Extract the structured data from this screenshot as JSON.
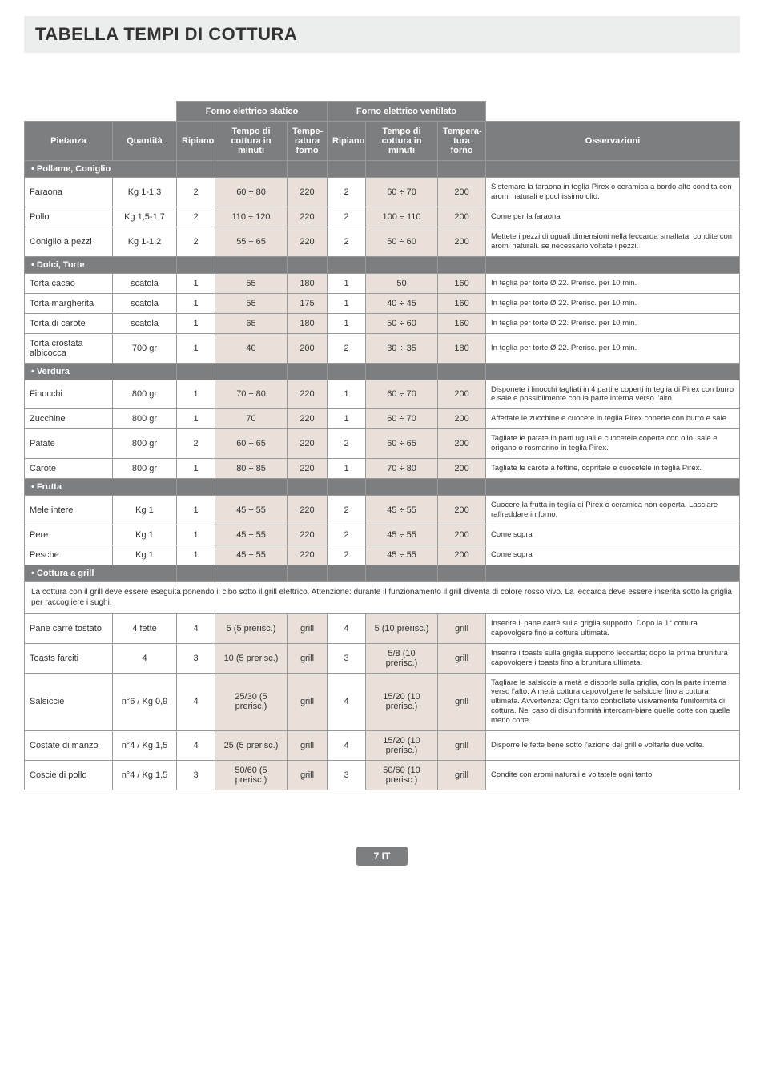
{
  "title": "TABELLA TEMPI DI COTTURA",
  "group_headers": {
    "statico": "Forno elettrico statico",
    "ventilato": "Forno elettrico ventilato"
  },
  "col_headers": {
    "pietanza": "Pietanza",
    "quantita": "Quantità",
    "ripiano1": "Ripiano",
    "tempo1": "Tempo di cottura in minuti",
    "temp1": "Tempe-ratura forno",
    "ripiano2": "Ripiano",
    "tempo2": "Tempo di cottura in minuti",
    "temp2": "Tempera-tura forno",
    "oss": "Osservazioni"
  },
  "sections": [
    {
      "name": "• Pollame, Coniglio",
      "rows": [
        {
          "piet": "Faraona",
          "qta": "Kg 1-1,3",
          "r1": "2",
          "t1": "60 ÷ 80",
          "tp1": "220",
          "r2": "2",
          "t2": "60 ÷ 70",
          "tp2": "200",
          "obs": "Sistemare la faraona in teglia Pirex o ceramica a bordo alto condita con aromi naturali e pochissimo olio."
        },
        {
          "piet": "Pollo",
          "qta": "Kg 1,5-1,7",
          "r1": "2",
          "t1": "110 ÷ 120",
          "tp1": "220",
          "r2": "2",
          "t2": "100 ÷ 110",
          "tp2": "200",
          "obs": "Come per la faraona"
        },
        {
          "piet": "Coniglio a pezzi",
          "qta": "Kg 1-1,2",
          "r1": "2",
          "t1": "55 ÷ 65",
          "tp1": "220",
          "r2": "2",
          "t2": "50 ÷ 60",
          "tp2": "200",
          "obs": "Mettete i pezzi di uguali dimensioni nella leccarda smaltata, condite con aromi naturali. se necessario voltate i pezzi."
        }
      ]
    },
    {
      "name": "• Dolci, Torte",
      "rows": [
        {
          "piet": "Torta cacao",
          "qta": "scatola",
          "r1": "1",
          "t1": "55",
          "tp1": "180",
          "r2": "1",
          "t2": "50",
          "tp2": "160",
          "obs": "In teglia per torte Ø 22. Prerisc. per 10 min."
        },
        {
          "piet": "Torta margherita",
          "qta": "scatola",
          "r1": "1",
          "t1": "55",
          "tp1": "175",
          "r2": "1",
          "t2": "40 ÷ 45",
          "tp2": "160",
          "obs": "In teglia per torte Ø 22. Prerisc. per 10 min."
        },
        {
          "piet": "Torta di carote",
          "qta": "scatola",
          "r1": "1",
          "t1": "65",
          "tp1": "180",
          "r2": "1",
          "t2": "50 ÷ 60",
          "tp2": "160",
          "obs": "In teglia per torte Ø 22. Prerisc. per 10 min."
        },
        {
          "piet": "Torta crostata albicocca",
          "qta": "700 gr",
          "r1": "1",
          "t1": "40",
          "tp1": "200",
          "r2": "2",
          "t2": "30 ÷ 35",
          "tp2": "180",
          "obs": "In teglia per torte Ø 22. Prerisc. per 10 min."
        }
      ]
    },
    {
      "name": "• Verdura",
      "rows": [
        {
          "piet": "Finocchi",
          "qta": "800 gr",
          "r1": "1",
          "t1": "70 ÷ 80",
          "tp1": "220",
          "r2": "1",
          "t2": "60 ÷ 70",
          "tp2": "200",
          "obs": "Disponete i finocchi tagliati in 4 parti e coperti in teglia di Pirex con burro e sale e possibilmente con la parte interna verso l'alto"
        },
        {
          "piet": "Zucchine",
          "qta": "800 gr",
          "r1": "1",
          "t1": "70",
          "tp1": "220",
          "r2": "1",
          "t2": "60 ÷ 70",
          "tp2": "200",
          "obs": "Affettate le zucchine e cuocete in teglia Pirex coperte con burro e sale"
        },
        {
          "piet": "Patate",
          "qta": "800 gr",
          "r1": "2",
          "t1": "60 ÷ 65",
          "tp1": "220",
          "r2": "2",
          "t2": "60 ÷ 65",
          "tp2": "200",
          "obs": "Tagliate le patate in parti uguali e cuocetele coperte con olio, sale e origano o rosmarino in teglia Pirex."
        },
        {
          "piet": "Carote",
          "qta": "800 gr",
          "r1": "1",
          "t1": "80 ÷ 85",
          "tp1": "220",
          "r2": "1",
          "t2": "70 ÷ 80",
          "tp2": "200",
          "obs": "Tagliate le carote a fettine, copritele e cuocetele in teglia Pirex."
        }
      ]
    },
    {
      "name": "• Frutta",
      "rows": [
        {
          "piet": "Mele intere",
          "qta": "Kg 1",
          "r1": "1",
          "t1": "45 ÷ 55",
          "tp1": "220",
          "r2": "2",
          "t2": "45 ÷ 55",
          "tp2": "200",
          "obs": "Cuocere la frutta in teglia di Pirex o ceramica non coperta. Lasciare raffreddare in forno."
        },
        {
          "piet": "Pere",
          "qta": "Kg 1",
          "r1": "1",
          "t1": "45 ÷ 55",
          "tp1": "220",
          "r2": "2",
          "t2": "45 ÷ 55",
          "tp2": "200",
          "obs": "Come sopra"
        },
        {
          "piet": "Pesche",
          "qta": "Kg 1",
          "r1": "1",
          "t1": "45 ÷ 55",
          "tp1": "220",
          "r2": "2",
          "t2": "45 ÷ 55",
          "tp2": "200",
          "obs": "Come sopra"
        }
      ]
    }
  ],
  "grill_section": "• Cottura a grill",
  "grill_note": "La cottura con il grill deve essere eseguita ponendo il cibo sotto il grill elettrico. Attenzione: durante il funzionamento il grill diventa di colore rosso vivo. La leccarda deve essere inserita sotto la griglia per raccogliere i sughi.",
  "grill_rows": [
    {
      "piet": "Pane carrè tostato",
      "qta": "4 fette",
      "r1": "4",
      "t1": "5 (5 prerisc.)",
      "tp1": "grill",
      "r2": "4",
      "t2": "5 (10 prerisc.)",
      "tp2": "grill",
      "obs": "Inserire il pane carrè sulla griglia supporto. Dopo la 1° cottura capovolgere fino a cottura ultimata."
    },
    {
      "piet": "Toasts farciti",
      "qta": "4",
      "r1": "3",
      "t1": "10 (5 prerisc.)",
      "tp1": "grill",
      "r2": "3",
      "t2": "5/8 (10 prerisc.)",
      "tp2": "grill",
      "obs": "Inserire i toasts sulla griglia supporto leccarda; dopo la prima brunitura capovolgere i toasts fino a brunitura ultimata."
    },
    {
      "piet": "Salsiccie",
      "qta": "n°6 / Kg 0,9",
      "r1": "4",
      "t1": "25/30 (5 prerisc.)",
      "tp1": "grill",
      "r2": "4",
      "t2": "15/20 (10 prerisc.)",
      "tp2": "grill",
      "obs": "Tagliare le salsiccie a metà e disporle sulla griglia, con la parte interna verso l'alto. A metà cottura capovolgere le salsiccie fino a cottura ultimata. Avvertenza: Ogni tanto controllate visivamente l'uniformità di cottura. Nel caso di disuniformità intercam-biare quelle cotte con quelle meno cotte."
    },
    {
      "piet": "Costate di manzo",
      "qta": "n°4 / Kg 1,5",
      "r1": "4",
      "t1": "25 (5 prerisc.)",
      "tp1": "grill",
      "r2": "4",
      "t2": "15/20 (10 prerisc.)",
      "tp2": "grill",
      "obs": "Disporre le fette bene sotto l'azione del grill e voltarle due volte."
    },
    {
      "piet": "Coscie di pollo",
      "qta": "n°4 / Kg 1,5",
      "r1": "3",
      "t1": "50/60 (5 prerisc.)",
      "tp1": "grill",
      "r2": "3",
      "t2": "50/60 (10 prerisc.)",
      "tp2": "grill",
      "obs": "Condite con aromi naturali e voltatele ogni tanto."
    }
  ],
  "footer": "7 IT"
}
